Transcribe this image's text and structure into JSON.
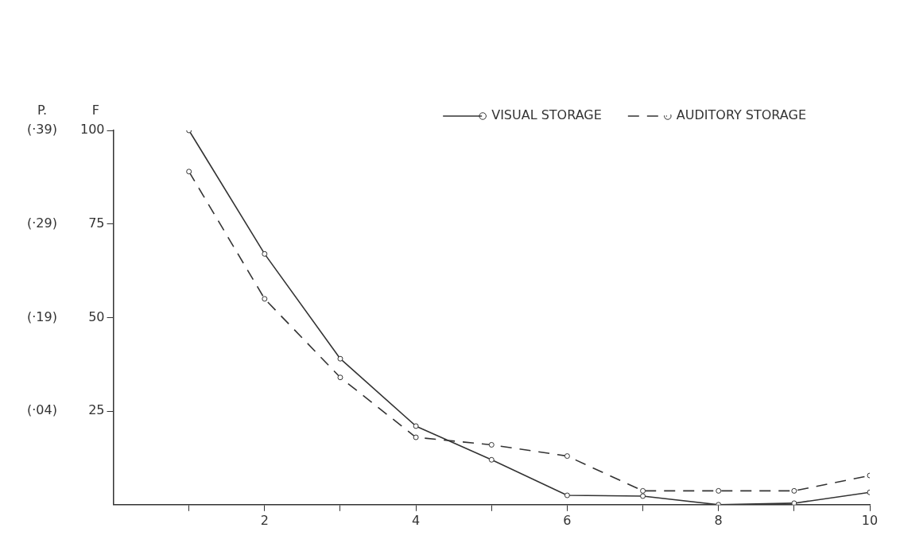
{
  "chart_data": {
    "type": "line",
    "xlabel": null,
    "ylabel": "F",
    "annotations": [
      "P.",
      "(·39)",
      "(·29)",
      "(·19)",
      "(·04)"
    ],
    "x": [
      1,
      2,
      3,
      4,
      5,
      6,
      7,
      8,
      9,
      10
    ],
    "series": [
      {
        "name": "VISUAL STORAGE",
        "color": "#333333",
        "line_style": "solid",
        "values": [
          100,
          67,
          39,
          21,
          12,
          2.5,
          2.3,
          0,
          0.4,
          3.3
        ]
      },
      {
        "name": "AUDITORY STORAGE",
        "color": "#333333",
        "line_style": "dashed",
        "values": [
          89,
          55,
          34,
          18,
          16,
          13,
          3.7,
          3.7,
          3.7,
          7.8
        ]
      }
    ],
    "xlim": [
      0,
      10
    ],
    "xticks": [
      {
        "value": 1,
        "label": null
      },
      2,
      {
        "value": 3,
        "label": null
      },
      4,
      {
        "value": 5,
        "label": null
      },
      6,
      {
        "value": 7,
        "label": null
      },
      8,
      {
        "value": 9,
        "label": null
      },
      10
    ],
    "ylim": [
      0,
      100
    ],
    "yticks": [
      25,
      50,
      75,
      100
    ],
    "marker": "circle",
    "grid": false,
    "legend": "top right"
  }
}
